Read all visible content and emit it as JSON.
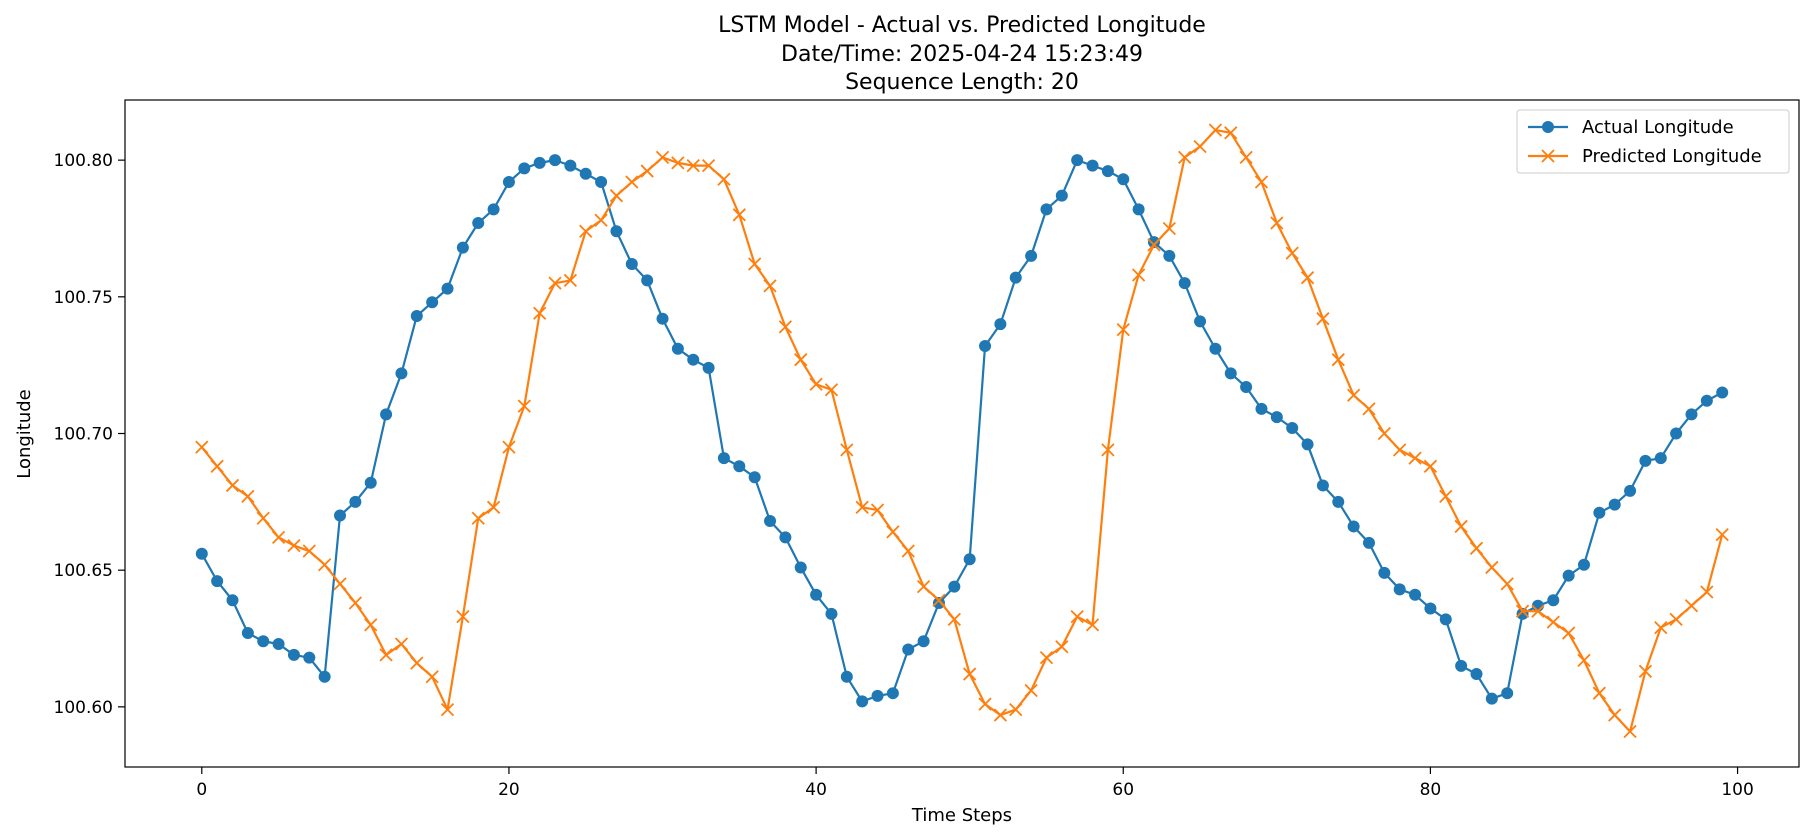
{
  "chart_data": {
    "type": "line",
    "title_lines": [
      "LSTM Model - Actual vs. Predicted Longitude",
      "Date/Time: 2025-04-24 15:23:49",
      "Sequence Length: 20"
    ],
    "xlabel": "Time Steps",
    "ylabel": "Longitude",
    "xlim": [
      -5,
      104
    ],
    "ylim": [
      100.578,
      100.822
    ],
    "x_ticks": [
      0,
      20,
      40,
      60,
      80,
      100
    ],
    "y_ticks": [
      100.6,
      100.65,
      100.7,
      100.75,
      100.8
    ],
    "x_tick_labels": [
      "0",
      "20",
      "40",
      "60",
      "80",
      "100"
    ],
    "y_tick_labels": [
      "100.60",
      "100.65",
      "100.70",
      "100.75",
      "100.80"
    ],
    "grid": false,
    "legend_position": "top-right",
    "series": [
      {
        "name": "Actual Longitude",
        "color": "#1f77b4",
        "marker": "circle",
        "values": [
          100.656,
          100.646,
          100.639,
          100.627,
          100.624,
          100.623,
          100.619,
          100.618,
          100.611,
          100.67,
          100.675,
          100.682,
          100.707,
          100.722,
          100.743,
          100.748,
          100.753,
          100.768,
          100.777,
          100.782,
          100.792,
          100.797,
          100.799,
          100.8,
          100.798,
          100.795,
          100.792,
          100.774,
          100.762,
          100.756,
          100.742,
          100.731,
          100.727,
          100.724,
          100.691,
          100.688,
          100.684,
          100.668,
          100.662,
          100.651,
          100.641,
          100.634,
          100.611,
          100.602,
          100.604,
          100.605,
          100.621,
          100.624,
          100.638,
          100.644,
          100.654,
          100.732,
          100.74,
          100.757,
          100.765,
          100.782,
          100.787,
          100.8,
          100.798,
          100.796,
          100.793,
          100.782,
          100.77,
          100.765,
          100.755,
          100.741,
          100.731,
          100.722,
          100.717,
          100.709,
          100.706,
          100.702,
          100.696,
          100.681,
          100.675,
          100.666,
          100.66,
          100.649,
          100.643,
          100.641,
          100.636,
          100.632,
          100.615,
          100.612,
          100.603,
          100.605,
          100.634,
          100.637,
          100.639,
          100.648,
          100.652,
          100.671,
          100.674,
          100.679,
          100.69,
          100.691,
          100.7,
          100.707,
          100.712,
          100.715
        ]
      },
      {
        "name": "Predicted Longitude",
        "color": "#ff7f0e",
        "marker": "x",
        "values": [
          100.695,
          100.688,
          100.681,
          100.677,
          100.669,
          100.662,
          100.659,
          100.657,
          100.652,
          100.645,
          100.638,
          100.63,
          100.619,
          100.623,
          100.616,
          100.611,
          100.599,
          100.633,
          100.669,
          100.673,
          100.695,
          100.71,
          100.744,
          100.755,
          100.756,
          100.774,
          100.778,
          100.787,
          100.792,
          100.796,
          100.801,
          100.799,
          100.798,
          100.798,
          100.793,
          100.78,
          100.762,
          100.754,
          100.739,
          100.727,
          100.718,
          100.716,
          100.694,
          100.673,
          100.672,
          100.664,
          100.657,
          100.644,
          100.639,
          100.632,
          100.612,
          100.601,
          100.597,
          100.599,
          100.606,
          100.618,
          100.622,
          100.633,
          100.63,
          100.694,
          100.738,
          100.758,
          100.769,
          100.775,
          100.801,
          100.805,
          100.811,
          100.81,
          100.801,
          100.792,
          100.777,
          100.766,
          100.757,
          100.742,
          100.727,
          100.714,
          100.709,
          100.7,
          100.694,
          100.691,
          100.688,
          100.677,
          100.666,
          100.658,
          100.651,
          100.645,
          100.635,
          100.635,
          100.631,
          100.627,
          100.617,
          100.605,
          100.597,
          100.591,
          100.613,
          100.629,
          100.632,
          100.637,
          100.642,
          100.663
        ]
      }
    ]
  }
}
